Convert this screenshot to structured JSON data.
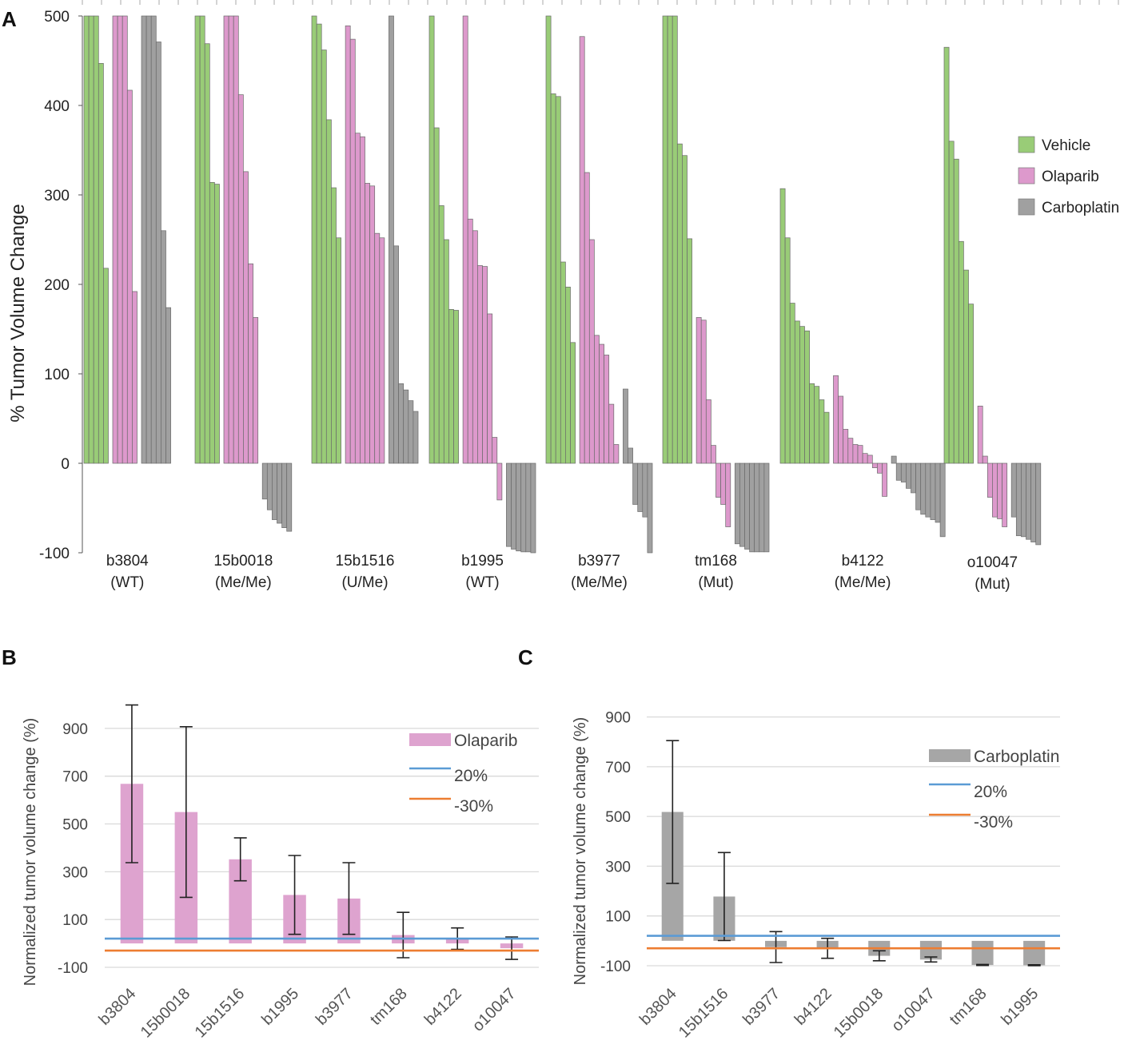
{
  "panels": {
    "A": "A",
    "B": "B",
    "C": "C"
  },
  "chart_data": [
    {
      "id": "A",
      "type": "bar",
      "title": "",
      "ylabel": "% Tumor Volume Change",
      "ylim": [
        -100,
        500
      ],
      "yticks": [
        -100,
        0,
        100,
        200,
        300,
        400,
        500
      ],
      "legend": [
        "Vehicle",
        "Olaparib",
        "Carboplatin"
      ],
      "colors": {
        "Vehicle": "#99cc77",
        "Olaparib": "#dd99cc",
        "Carboplatin": "#a0a0a0"
      },
      "groups": [
        {
          "name": "b3804",
          "genotype": "(WT)",
          "Vehicle": [
            500,
            500,
            500,
            447,
            218
          ],
          "Olaparib": [
            500,
            500,
            500,
            417,
            192
          ],
          "Carboplatin": [
            500,
            500,
            500,
            471,
            260,
            174
          ]
        },
        {
          "name": "15b0018",
          "genotype": "(Me/Me)",
          "Vehicle": [
            500,
            500,
            469,
            314,
            312
          ],
          "Olaparib": [
            500,
            500,
            500,
            412,
            326,
            223,
            163
          ],
          "Carboplatin": [
            -40,
            -52,
            -63,
            -67,
            -72,
            -76
          ]
        },
        {
          "name": "15b1516",
          "genotype": "(U/Me)",
          "Vehicle": [
            500,
            491,
            462,
            384,
            308,
            252
          ],
          "Olaparib": [
            489,
            474,
            369,
            365,
            313,
            310,
            257,
            252
          ],
          "Carboplatin": [
            500,
            243,
            89,
            82,
            70,
            58
          ]
        },
        {
          "name": "b1995",
          "genotype": "(WT)",
          "Vehicle": [
            500,
            375,
            288,
            250,
            172,
            171
          ],
          "Olaparib": [
            500,
            273,
            260,
            221,
            220,
            167,
            29,
            -41
          ],
          "Carboplatin": [
            -93,
            -96,
            -98,
            -99,
            -99,
            -100
          ]
        },
        {
          "name": "b3977",
          "genotype": "(Me/Me)",
          "Vehicle": [
            500,
            413,
            410,
            225,
            197,
            135
          ],
          "Olaparib": [
            477,
            325,
            250,
            143,
            133,
            121,
            66,
            21
          ],
          "Carboplatin": [
            83,
            17,
            -46,
            -54,
            -60,
            -100
          ]
        },
        {
          "name": "tm168",
          "genotype": "(Mut)",
          "Vehicle": [
            500,
            500,
            500,
            357,
            344,
            251
          ],
          "Olaparib": [
            163,
            160,
            71,
            20,
            -38,
            -46,
            -71
          ],
          "Carboplatin": [
            -90,
            -93,
            -96,
            -99,
            -99,
            -99,
            -99
          ]
        },
        {
          "name": "b4122",
          "genotype": "(Me/Me)",
          "Vehicle": [
            307,
            252,
            179,
            159,
            153,
            148,
            89,
            86,
            71,
            57
          ],
          "Olaparib": [
            98,
            75,
            38,
            28,
            21,
            20,
            11,
            9,
            -5,
            -11,
            -37
          ],
          "Carboplatin": [
            8,
            -19,
            -21,
            -28,
            -33,
            -52,
            -57,
            -60,
            -63,
            -66,
            -82
          ]
        },
        {
          "name": "o10047",
          "genotype": "(Mut)",
          "Vehicle": [
            465,
            360,
            340,
            248,
            216,
            178
          ],
          "Olaparib": [
            64,
            8,
            -38,
            -60,
            -62,
            -71
          ],
          "Carboplatin": [
            -60,
            -81,
            -82,
            -85,
            -88,
            -91
          ]
        }
      ]
    },
    {
      "id": "B",
      "type": "bar",
      "title": "",
      "xlabel": "",
      "ylabel": "Normalized tumor volume change (%)",
      "ylim": [
        -100,
        1000
      ],
      "yticks": [
        -100,
        100,
        300,
        500,
        700,
        900
      ],
      "categories": [
        "b3804",
        "15b0018",
        "15b1516",
        "b1995",
        "b3977",
        "tm168",
        "b4122",
        "o10047"
      ],
      "series": [
        {
          "name": "Olaparib",
          "color": "#dea3cf",
          "values": [
            668,
            550,
            352,
            203,
            188,
            35,
            20,
            -20
          ],
          "errors": [
            330,
            357,
            90,
            165,
            150,
            95,
            45,
            47
          ]
        }
      ],
      "reference_lines": [
        {
          "name": "20%",
          "value": 20,
          "color": "#5b9bd5"
        },
        {
          "name": "-30%",
          "value": -30,
          "color": "#ed7d31"
        }
      ]
    },
    {
      "id": "C",
      "type": "bar",
      "title": "",
      "xlabel": "",
      "ylabel": "Normalized tumor volume change (%)",
      "ylim": [
        -100,
        950
      ],
      "yticks": [
        -100,
        100,
        300,
        500,
        700,
        900
      ],
      "categories": [
        "b3804",
        "15b1516",
        "b3977",
        "b4122",
        "15b0018",
        "o10047",
        "tm168",
        "b1995"
      ],
      "series": [
        {
          "name": "Carboplatin",
          "color": "#a6a6a6",
          "values": [
            518,
            178,
            -25,
            -30,
            -60,
            -75,
            -97,
            -98
          ],
          "errors": [
            287,
            177,
            62,
            40,
            20,
            10,
            2,
            2
          ]
        }
      ],
      "reference_lines": [
        {
          "name": "20%",
          "value": 20,
          "color": "#5b9bd5"
        },
        {
          "name": "-30%",
          "value": -30,
          "color": "#ed7d31"
        }
      ]
    }
  ]
}
